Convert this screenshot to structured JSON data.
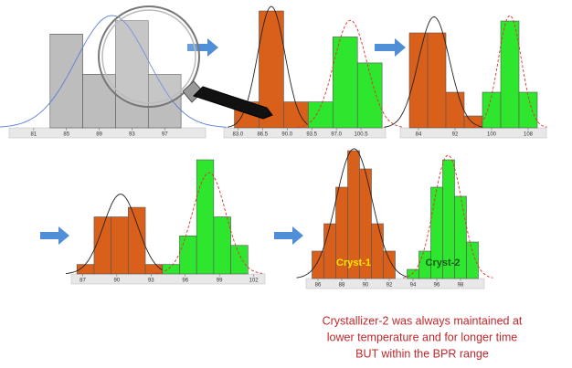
{
  "chart_data": [
    {
      "type": "histogram",
      "xlim": [
        78,
        102
      ],
      "ylim": [
        0,
        9
      ],
      "xticks": [
        81,
        85,
        89,
        93,
        97
      ],
      "series": [
        {
          "color": "#bdbdbd",
          "fit_color": "#5b7fd6",
          "bins": [
            83,
            87,
            91,
            95,
            99
          ],
          "values": [
            7,
            4,
            8,
            4
          ]
        }
      ]
    },
    {
      "type": "histogram",
      "xlim": [
        81,
        104
      ],
      "ylim": [
        0,
        9
      ],
      "xticks": [
        {
          "value": 83,
          "label": "83.0"
        },
        {
          "value": 86.5,
          "label": "86.5"
        },
        {
          "value": 90,
          "label": "90.0"
        },
        {
          "value": 93.5,
          "label": "93.5"
        },
        {
          "value": 97,
          "label": "97.0"
        },
        {
          "value": 100.5,
          "label": "100.5"
        }
      ],
      "series": [
        {
          "color": "#d9601a",
          "fit_color": "#222222",
          "bins": [
            82.5,
            86,
            89.5,
            93
          ],
          "values": [
            2,
            9,
            2
          ]
        },
        {
          "color": "#2ee62e",
          "fit_color": "#e03030",
          "fit_dash": true,
          "bins": [
            93,
            96.5,
            100,
            103.5
          ],
          "values": [
            2,
            7,
            5
          ]
        }
      ]
    },
    {
      "type": "histogram",
      "xlim": [
        80,
        112
      ],
      "ylim": [
        0,
        10
      ],
      "xticks": [
        84,
        92,
        100,
        108
      ],
      "series": [
        {
          "color": "#d9601a",
          "fit_color": "#222222",
          "bins": [
            82,
            86,
            90,
            94,
            98
          ],
          "values": [
            8,
            8,
            3,
            1
          ]
        },
        {
          "color": "#2ee62e",
          "fit_color": "#e03030",
          "fit_dash": true,
          "bins": [
            98,
            102,
            106,
            110
          ],
          "values": [
            3,
            9,
            3
          ]
        }
      ]
    },
    {
      "type": "histogram",
      "xlim": [
        86,
        103
      ],
      "ylim": [
        0,
        12
      ],
      "xticks": [
        87,
        90,
        93,
        96,
        99,
        102
      ],
      "series": [
        {
          "color": "#d9601a",
          "fit_color": "#222222",
          "bins": [
            86.5,
            88,
            89.5,
            91,
            92.5,
            94
          ],
          "values": [
            1,
            6,
            6,
            7,
            1
          ]
        },
        {
          "color": "#2ee62e",
          "fit_color": "#e03030",
          "fit_dash": true,
          "bins": [
            94,
            95.5,
            97,
            98.5,
            100,
            101.5
          ],
          "values": [
            1,
            4,
            12,
            6,
            3
          ]
        }
      ]
    },
    {
      "type": "histogram",
      "xlim": [
        85,
        100
      ],
      "ylim": [
        0,
        14
      ],
      "xticks": [
        86,
        88,
        90,
        92,
        94,
        96,
        98
      ],
      "series": [
        {
          "color": "#d9601a",
          "fit_color": "#222222",
          "name": "Cryst-1",
          "name_color": "#ffe600",
          "bins": [
            85.5,
            86.5,
            87.5,
            88.5,
            89.5,
            90.5,
            91.5,
            92.5
          ],
          "values": [
            3,
            6,
            10,
            14,
            12,
            6,
            3
          ]
        },
        {
          "color": "#2ee62e",
          "fit_color": "#e03030",
          "fit_dash": true,
          "name": "Cryst-2",
          "name_color": "#1a5a1a",
          "bins": [
            93.5,
            94.5,
            95.5,
            96.5,
            97.5,
            98.5,
            99.5
          ],
          "values": [
            1,
            3,
            10,
            13,
            9,
            4
          ]
        }
      ]
    }
  ],
  "caption": [
    "Crystallizer-2 was always maintained at",
    "lower temperature and for longer time",
    "BUT within the BPR range"
  ]
}
